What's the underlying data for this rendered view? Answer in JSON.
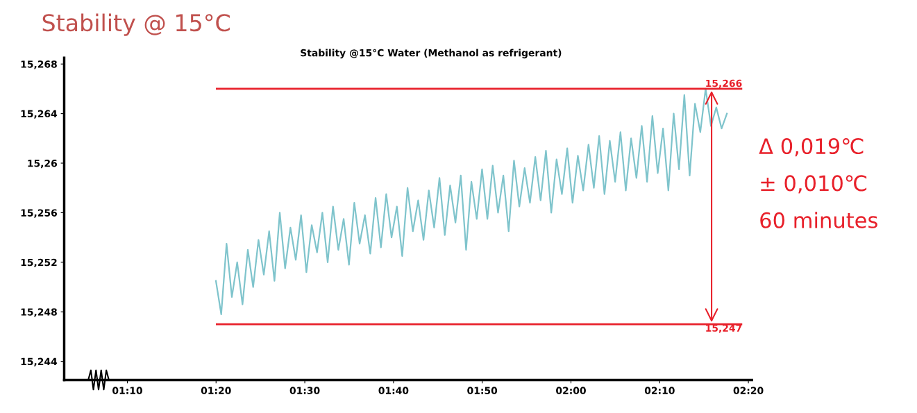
{
  "chart_data": {
    "type": "line",
    "title": "Stability @ 15°C",
    "subtitle": "Stability @15°C Water (Methanol as refrigerant)",
    "series": [
      {
        "color": "#7fc4cc",
        "x": [
          1.333,
          1.343,
          1.353,
          1.363,
          1.373,
          1.383,
          1.393,
          1.403,
          1.413,
          1.423,
          1.433,
          1.443,
          1.453,
          1.463,
          1.473,
          1.483,
          1.493,
          1.503,
          1.513,
          1.523,
          1.533,
          1.543,
          1.553,
          1.563,
          1.573,
          1.583,
          1.593,
          1.603,
          1.613,
          1.623,
          1.633,
          1.643,
          1.653,
          1.663,
          1.673,
          1.683,
          1.693,
          1.703,
          1.713,
          1.723,
          1.733,
          1.743,
          1.753,
          1.763,
          1.773,
          1.783,
          1.793,
          1.803,
          1.813,
          1.823,
          1.833,
          1.843,
          1.853,
          1.863,
          1.873,
          1.883,
          1.893,
          1.903,
          1.913,
          1.923,
          1.933,
          1.943,
          1.953,
          1.963,
          1.973,
          1.983,
          1.993,
          2.003,
          2.013,
          2.023,
          2.033,
          2.043,
          2.053,
          2.063,
          2.073,
          2.083,
          2.093,
          2.103,
          2.113,
          2.123,
          2.133,
          2.143,
          2.153,
          2.163,
          2.173,
          2.183,
          2.193,
          2.203,
          2.213,
          2.223,
          2.233,
          2.243,
          2.253,
          2.263,
          2.273,
          2.283,
          2.293
        ],
        "values": [
          15.2505,
          15.2478,
          15.2535,
          15.2492,
          15.252,
          15.2486,
          15.253,
          15.25,
          15.2538,
          15.251,
          15.2545,
          15.2505,
          15.256,
          15.2515,
          15.2548,
          15.2522,
          15.2558,
          15.2512,
          15.255,
          15.2528,
          15.256,
          15.252,
          15.2565,
          15.253,
          15.2555,
          15.2518,
          15.2568,
          15.2535,
          15.2558,
          15.2527,
          15.2572,
          15.2532,
          15.2575,
          15.254,
          15.2565,
          15.2525,
          15.258,
          15.2545,
          15.257,
          15.2538,
          15.2578,
          15.2548,
          15.2588,
          15.2542,
          15.2582,
          15.2552,
          15.259,
          15.253,
          15.2585,
          15.2555,
          15.2595,
          15.2555,
          15.2598,
          15.256,
          15.259,
          15.2545,
          15.2602,
          15.2565,
          15.2596,
          15.2568,
          15.2605,
          15.257,
          15.261,
          15.256,
          15.2603,
          15.2575,
          15.2612,
          15.2568,
          15.2606,
          15.2578,
          15.2615,
          15.258,
          15.2622,
          15.2575,
          15.2618,
          15.2585,
          15.2625,
          15.2578,
          15.262,
          15.2588,
          15.263,
          15.2585,
          15.2638,
          15.2592,
          15.2628,
          15.2578,
          15.264,
          15.2595,
          15.2655,
          15.259,
          15.2648,
          15.2625,
          15.266,
          15.263,
          15.2645,
          15.2628,
          15.264
        ]
      }
    ],
    "xlim": [
      1.048,
      2.34
    ],
    "xticks": [
      {
        "value": 1.1667,
        "label": "01:10"
      },
      {
        "value": 1.3333,
        "label": "01:20"
      },
      {
        "value": 1.5,
        "label": "01:30"
      },
      {
        "value": 1.6667,
        "label": "01:40"
      },
      {
        "value": 1.8333,
        "label": "01:50"
      },
      {
        "value": 2.0,
        "label": "02:00"
      },
      {
        "value": 2.1667,
        "label": "02:10"
      },
      {
        "value": 2.3333,
        "label": "02:20"
      }
    ],
    "ylim": [
      15.2425,
      15.2685
    ],
    "yticks": [
      {
        "value": 15.244,
        "label": "15,244"
      },
      {
        "value": 15.248,
        "label": "15,248"
      },
      {
        "value": 15.252,
        "label": "15,252"
      },
      {
        "value": 15.256,
        "label": "15,256"
      },
      {
        "value": 15.26,
        "label": "15,26"
      },
      {
        "value": 15.264,
        "label": "15,264"
      },
      {
        "value": 15.268,
        "label": "15,268"
      }
    ],
    "ref_lines": [
      {
        "axis": "y",
        "value": 15.266,
        "label": "15,266",
        "color": "#e8202a"
      },
      {
        "axis": "y",
        "value": 15.247,
        "label": "15,247",
        "color": "#e8202a"
      }
    ],
    "annotations": [
      "Δ 0,019℃",
      "± 0,010℃",
      "60 minutes"
    ],
    "grid": false,
    "legend": false,
    "marker": "none",
    "line_style": "solid"
  }
}
